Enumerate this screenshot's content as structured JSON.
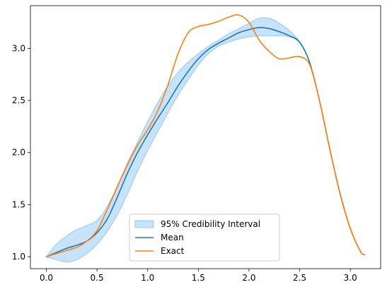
{
  "chart_data": {
    "type": "line",
    "title": "",
    "xlabel": "",
    "ylabel": "",
    "xlim": [
      -0.157,
      3.299
    ],
    "ylim": [
      0.885,
      3.41
    ],
    "xticks": [
      0.0,
      0.5,
      1.0,
      1.5,
      2.0,
      2.5,
      3.0
    ],
    "xtick_labels": [
      "0.0",
      "0.5",
      "1.0",
      "1.5",
      "2.0",
      "2.5",
      "3.0"
    ],
    "yticks": [
      1.0,
      1.5,
      2.0,
      2.5,
      3.0
    ],
    "ytick_labels": [
      "1.0",
      "1.5",
      "2.0",
      "2.5",
      "3.0"
    ],
    "grid": false,
    "legend": {
      "position": "lower-center",
      "entries": [
        {
          "label": "95% Credibility Interval",
          "kind": "band"
        },
        {
          "label": "Mean",
          "kind": "line"
        },
        {
          "label": "Exact",
          "kind": "line"
        }
      ]
    },
    "colors": {
      "band_fill": "#1f8ff0",
      "band_edge": "#4da3f0",
      "mean": "#1f77b4",
      "exact": "#ff7f0e"
    },
    "band": {
      "name": "95% Credibility Interval",
      "x": [
        0.0,
        0.1,
        0.2,
        0.3,
        0.4,
        0.5,
        0.6,
        0.7,
        0.8,
        0.9,
        1.0,
        1.1,
        1.2,
        1.3,
        1.4,
        1.5,
        1.6,
        1.7,
        1.8,
        1.9,
        2.0,
        2.1,
        2.2,
        2.3,
        2.4,
        2.5,
        2.6,
        2.7,
        2.8,
        2.9,
        3.0,
        3.1,
        3.14
      ],
      "upper": [
        1.0,
        1.12,
        1.2,
        1.26,
        1.3,
        1.35,
        1.48,
        1.68,
        1.9,
        2.1,
        2.3,
        2.48,
        2.64,
        2.77,
        2.87,
        2.95,
        3.02,
        3.08,
        3.14,
        3.19,
        3.24,
        3.29,
        3.29,
        3.24,
        3.17,
        3.06,
        2.86,
        2.48,
        2.02,
        1.6,
        1.27,
        1.05,
        1.02
      ],
      "lower": [
        1.0,
        0.97,
        0.95,
        0.97,
        1.03,
        1.12,
        1.24,
        1.4,
        1.6,
        1.82,
        2.02,
        2.2,
        2.38,
        2.55,
        2.7,
        2.84,
        2.95,
        3.02,
        3.06,
        3.09,
        3.11,
        3.12,
        3.12,
        3.12,
        3.11,
        3.05,
        2.86,
        2.48,
        2.02,
        1.6,
        1.27,
        1.05,
        1.02
      ]
    },
    "series": [
      {
        "name": "Mean",
        "x": [
          0.0,
          0.1,
          0.2,
          0.3,
          0.4,
          0.5,
          0.6,
          0.7,
          0.8,
          0.9,
          1.0,
          1.1,
          1.2,
          1.3,
          1.4,
          1.5,
          1.6,
          1.7,
          1.8,
          1.9,
          2.0,
          2.1,
          2.2,
          2.3,
          2.4,
          2.5,
          2.6,
          2.7,
          2.8,
          2.9,
          3.0,
          3.1,
          3.14
        ],
        "y": [
          1.0,
          1.04,
          1.08,
          1.11,
          1.15,
          1.23,
          1.36,
          1.57,
          1.8,
          2.0,
          2.17,
          2.33,
          2.48,
          2.64,
          2.78,
          2.9,
          2.99,
          3.05,
          3.1,
          3.15,
          3.18,
          3.2,
          3.19,
          3.16,
          3.12,
          3.06,
          2.86,
          2.48,
          2.02,
          1.6,
          1.27,
          1.05,
          1.02
        ]
      },
      {
        "name": "Exact",
        "x": [
          0.0,
          0.1,
          0.2,
          0.3,
          0.4,
          0.5,
          0.6,
          0.7,
          0.8,
          0.9,
          1.0,
          1.1,
          1.2,
          1.3,
          1.4,
          1.5,
          1.6,
          1.7,
          1.8,
          1.9,
          2.0,
          2.1,
          2.2,
          2.3,
          2.4,
          2.5,
          2.6,
          2.7,
          2.8,
          2.9,
          3.0,
          3.1,
          3.14
        ],
        "y": [
          1.0,
          1.03,
          1.06,
          1.09,
          1.15,
          1.25,
          1.45,
          1.67,
          1.88,
          2.07,
          2.22,
          2.4,
          2.65,
          2.95,
          3.15,
          3.21,
          3.23,
          3.26,
          3.3,
          3.32,
          3.25,
          3.08,
          2.97,
          2.9,
          2.91,
          2.92,
          2.84,
          2.48,
          2.02,
          1.6,
          1.27,
          1.05,
          1.02
        ]
      }
    ]
  }
}
